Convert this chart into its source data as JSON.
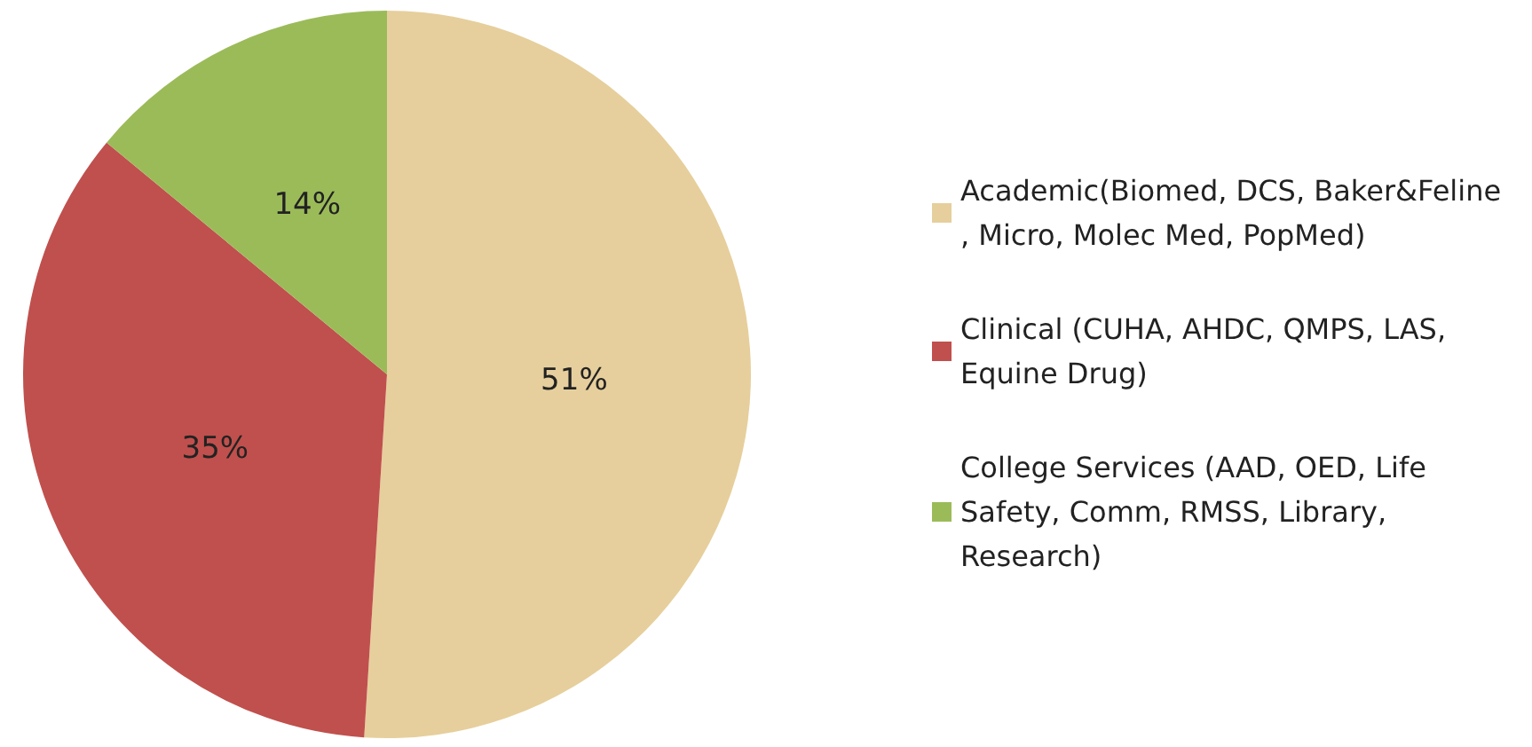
{
  "chart_data": {
    "type": "pie",
    "categories": [
      "Academic(Biomed, DCS, Baker&Feline, Micro, Molec Med, PopMed)",
      "Clinical (CUHA, AHDC, QMPS, LAS, Equine Drug)",
      "College Services (AAD, OED, Life Safety, Comm, RMSS, Library, Research)"
    ],
    "values": [
      51,
      35,
      14
    ],
    "colors": [
      "#e6cf9c",
      "#c0504d",
      "#9bbb59"
    ],
    "value_labels": [
      "51%",
      "35%",
      "14%"
    ],
    "legend": "right"
  }
}
